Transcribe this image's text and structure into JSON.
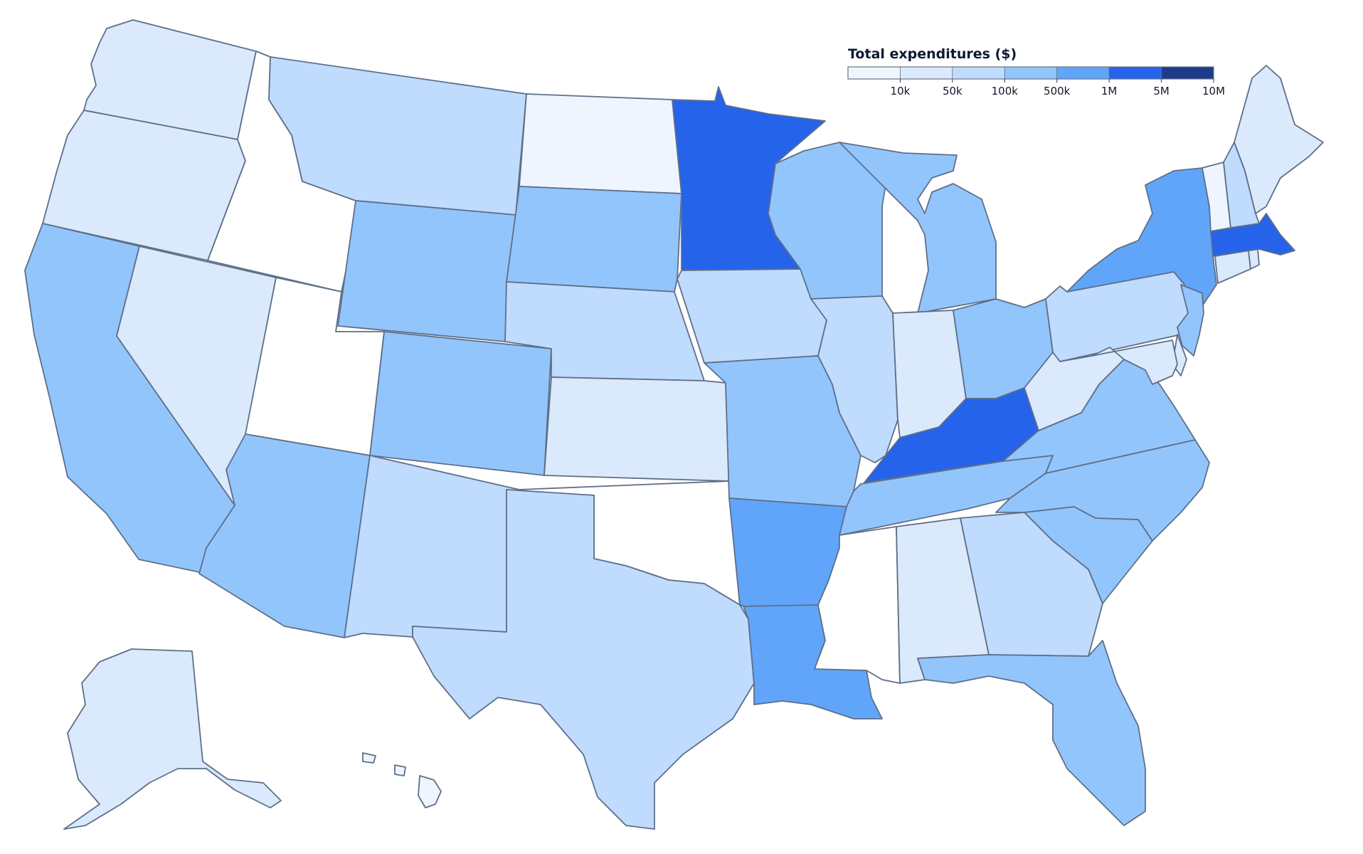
{
  "legend": {
    "title": "Total expenditures ($)",
    "colors": [
      "#eef5ff",
      "#dbe9fd",
      "#bfdbfe",
      "#93c5fd",
      "#60a5fa",
      "#2563eb",
      "#1e3a8a"
    ],
    "tick_labels": [
      "10k",
      "50k",
      "100k",
      "500k",
      "1M",
      "5M",
      "10M"
    ],
    "tick_values": [
      10000,
      50000,
      100000,
      500000,
      1000000,
      5000000,
      10000000
    ]
  },
  "map_data": {
    "type": "choropleth",
    "region": "United States",
    "palette": {
      "none": "#ffffff",
      "c0": "#eef5ff",
      "c1": "#dbe9fd",
      "c2": "#bfdbfe",
      "c3": "#93c5fd",
      "c4": "#60a5fa",
      "c5": "#2563eb",
      "c6": "#1e3a8a"
    },
    "states": [
      {
        "abbr": "WA",
        "bin": "c1"
      },
      {
        "abbr": "OR",
        "bin": "c1"
      },
      {
        "abbr": "CA",
        "bin": "c3"
      },
      {
        "abbr": "ID",
        "bin": "none"
      },
      {
        "abbr": "NV",
        "bin": "c1"
      },
      {
        "abbr": "UT",
        "bin": "none"
      },
      {
        "abbr": "AZ",
        "bin": "c3"
      },
      {
        "abbr": "MT",
        "bin": "c2"
      },
      {
        "abbr": "WY",
        "bin": "c3"
      },
      {
        "abbr": "CO",
        "bin": "c3"
      },
      {
        "abbr": "NM",
        "bin": "c2"
      },
      {
        "abbr": "ND",
        "bin": "c0"
      },
      {
        "abbr": "SD",
        "bin": "c3"
      },
      {
        "abbr": "NE",
        "bin": "c2"
      },
      {
        "abbr": "KS",
        "bin": "c1"
      },
      {
        "abbr": "OK",
        "bin": "none"
      },
      {
        "abbr": "TX",
        "bin": "c2"
      },
      {
        "abbr": "MN",
        "bin": "c5"
      },
      {
        "abbr": "IA",
        "bin": "c2"
      },
      {
        "abbr": "MO",
        "bin": "c3"
      },
      {
        "abbr": "AR",
        "bin": "c4"
      },
      {
        "abbr": "LA",
        "bin": "c4"
      },
      {
        "abbr": "WI",
        "bin": "c3"
      },
      {
        "abbr": "MI",
        "bin": "c3"
      },
      {
        "abbr": "IL",
        "bin": "c2"
      },
      {
        "abbr": "IN",
        "bin": "c1"
      },
      {
        "abbr": "OH",
        "bin": "c3"
      },
      {
        "abbr": "KY",
        "bin": "c5"
      },
      {
        "abbr": "TN",
        "bin": "c3"
      },
      {
        "abbr": "MS",
        "bin": "none"
      },
      {
        "abbr": "AL",
        "bin": "c1"
      },
      {
        "abbr": "GA",
        "bin": "c2"
      },
      {
        "abbr": "FL",
        "bin": "c3"
      },
      {
        "abbr": "SC",
        "bin": "c3"
      },
      {
        "abbr": "NC",
        "bin": "c3"
      },
      {
        "abbr": "VA",
        "bin": "c3"
      },
      {
        "abbr": "WV",
        "bin": "c1"
      },
      {
        "abbr": "PA",
        "bin": "c2"
      },
      {
        "abbr": "NY",
        "bin": "c4"
      },
      {
        "abbr": "NJ",
        "bin": "c3"
      },
      {
        "abbr": "DE",
        "bin": "c1"
      },
      {
        "abbr": "MD",
        "bin": "c1"
      },
      {
        "abbr": "CT",
        "bin": "c1"
      },
      {
        "abbr": "RI",
        "bin": "c1"
      },
      {
        "abbr": "MA",
        "bin": "c5"
      },
      {
        "abbr": "VT",
        "bin": "c0"
      },
      {
        "abbr": "NH",
        "bin": "c2"
      },
      {
        "abbr": "ME",
        "bin": "c1"
      },
      {
        "abbr": "AK",
        "bin": "c1"
      },
      {
        "abbr": "HI",
        "bin": "c0"
      }
    ]
  }
}
